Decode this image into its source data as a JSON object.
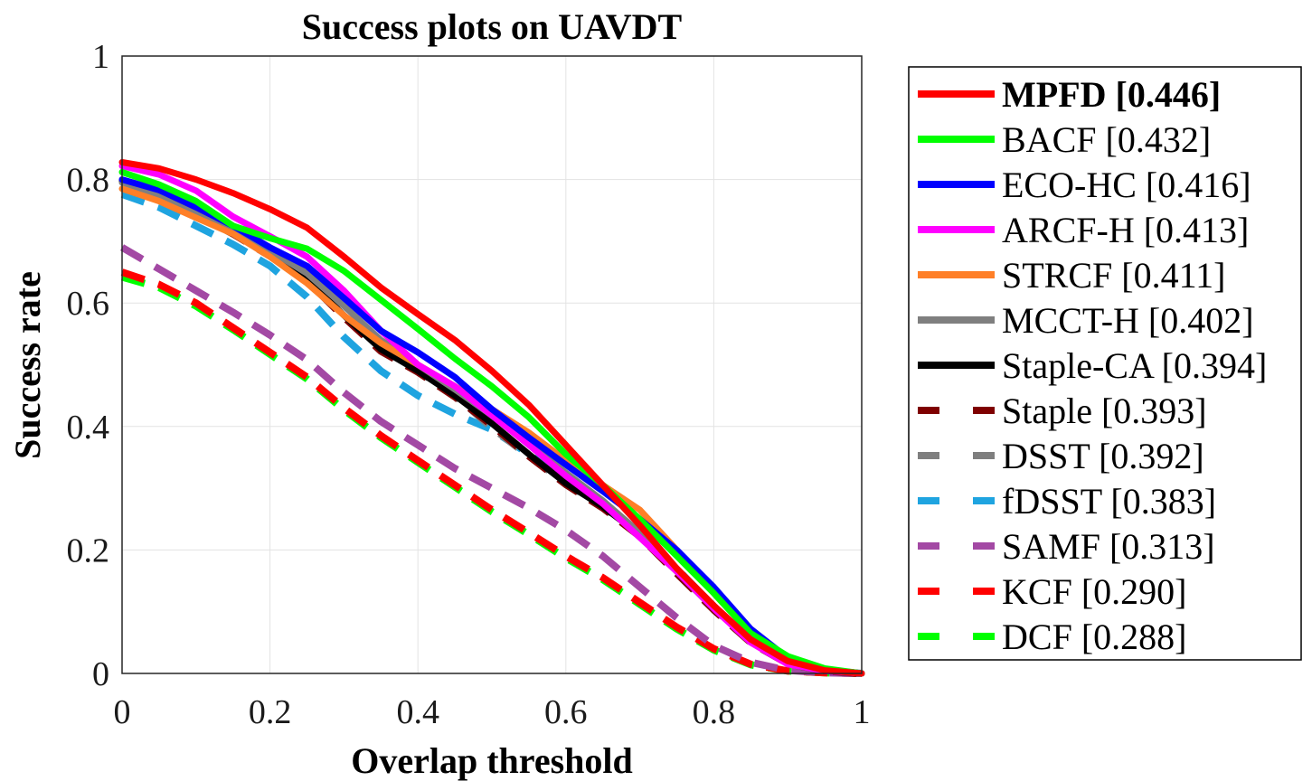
{
  "chart_data": {
    "type": "line",
    "title": "Success plots on UAVDT",
    "xlabel": "Overlap threshold",
    "ylabel": "Success rate",
    "xlim": [
      0,
      1
    ],
    "ylim": [
      0,
      1
    ],
    "xticks": [
      "0",
      "0.2",
      "0.4",
      "0.6",
      "0.8",
      "1"
    ],
    "yticks": [
      "0",
      "0.2",
      "0.4",
      "0.6",
      "0.8",
      "1"
    ],
    "grid": true,
    "legend_position": "outside-right",
    "series": [
      {
        "name": "MPFD",
        "label": "MPFD [0.446]",
        "score": 0.446,
        "color": "#ff0000",
        "dash": false,
        "bold": true,
        "x": [
          0,
          0.05,
          0.1,
          0.15,
          0.2,
          0.25,
          0.3,
          0.35,
          0.4,
          0.45,
          0.5,
          0.55,
          0.6,
          0.65,
          0.7,
          0.75,
          0.8,
          0.85,
          0.9,
          0.95,
          1
        ],
        "y": [
          0.828,
          0.818,
          0.8,
          0.778,
          0.752,
          0.722,
          0.675,
          0.625,
          0.582,
          0.54,
          0.49,
          0.435,
          0.37,
          0.305,
          0.24,
          0.17,
          0.11,
          0.055,
          0.02,
          0.005,
          0
        ]
      },
      {
        "name": "BACF",
        "label": "BACF [0.432]",
        "score": 0.432,
        "color": "#00ff00",
        "dash": false,
        "bold": false,
        "x": [
          0,
          0.05,
          0.1,
          0.15,
          0.2,
          0.25,
          0.3,
          0.35,
          0.4,
          0.45,
          0.5,
          0.55,
          0.6,
          0.65,
          0.7,
          0.75,
          0.8,
          0.85,
          0.9,
          0.95,
          1
        ],
        "y": [
          0.812,
          0.792,
          0.765,
          0.725,
          0.705,
          0.688,
          0.652,
          0.605,
          0.558,
          0.51,
          0.465,
          0.415,
          0.355,
          0.305,
          0.25,
          0.19,
          0.13,
          0.065,
          0.028,
          0.008,
          0
        ]
      },
      {
        "name": "ECO-HC",
        "label": "ECO-HC [0.416]",
        "score": 0.416,
        "color": "#0000ff",
        "dash": false,
        "bold": false,
        "x": [
          0,
          0.05,
          0.1,
          0.15,
          0.2,
          0.25,
          0.3,
          0.35,
          0.4,
          0.45,
          0.5,
          0.55,
          0.6,
          0.65,
          0.7,
          0.75,
          0.8,
          0.85,
          0.9,
          0.95,
          1
        ],
        "y": [
          0.8,
          0.783,
          0.755,
          0.725,
          0.69,
          0.66,
          0.608,
          0.555,
          0.52,
          0.48,
          0.428,
          0.382,
          0.338,
          0.295,
          0.25,
          0.2,
          0.14,
          0.072,
          0.025,
          0.007,
          0
        ]
      },
      {
        "name": "ARCF-H",
        "label": "ARCF-H [0.413]",
        "score": 0.413,
        "color": "#ff00ff",
        "dash": false,
        "bold": false,
        "x": [
          0,
          0.05,
          0.1,
          0.15,
          0.2,
          0.25,
          0.3,
          0.35,
          0.4,
          0.45,
          0.5,
          0.55,
          0.6,
          0.65,
          0.7,
          0.75,
          0.8,
          0.85,
          0.9,
          0.95,
          1
        ],
        "y": [
          0.822,
          0.808,
          0.782,
          0.74,
          0.708,
          0.675,
          0.62,
          0.555,
          0.5,
          0.465,
          0.418,
          0.37,
          0.32,
          0.275,
          0.22,
          0.165,
          0.105,
          0.05,
          0.015,
          0.004,
          0
        ]
      },
      {
        "name": "STRCF",
        "label": "STRCF [0.411]",
        "score": 0.411,
        "color": "#ff7f27",
        "dash": false,
        "bold": false,
        "x": [
          0,
          0.05,
          0.1,
          0.15,
          0.2,
          0.25,
          0.3,
          0.35,
          0.4,
          0.45,
          0.5,
          0.55,
          0.6,
          0.65,
          0.7,
          0.75,
          0.8,
          0.85,
          0.9,
          0.95,
          1
        ],
        "y": [
          0.785,
          0.765,
          0.738,
          0.712,
          0.675,
          0.632,
          0.58,
          0.535,
          0.5,
          0.465,
          0.428,
          0.39,
          0.345,
          0.305,
          0.265,
          0.2,
          0.13,
          0.065,
          0.022,
          0.006,
          0
        ]
      },
      {
        "name": "MCCT-H",
        "label": "MCCT-H [0.402]",
        "score": 0.402,
        "color": "#7f7f7f",
        "dash": false,
        "bold": false,
        "x": [
          0,
          0.05,
          0.1,
          0.15,
          0.2,
          0.25,
          0.3,
          0.35,
          0.4,
          0.45,
          0.5,
          0.55,
          0.6,
          0.65,
          0.7,
          0.75,
          0.8,
          0.85,
          0.9,
          0.95,
          1
        ],
        "y": [
          0.795,
          0.772,
          0.745,
          0.718,
          0.685,
          0.648,
          0.595,
          0.54,
          0.5,
          0.46,
          0.418,
          0.372,
          0.325,
          0.28,
          0.228,
          0.17,
          0.11,
          0.055,
          0.018,
          0.005,
          0
        ]
      },
      {
        "name": "Staple-CA",
        "label": "Staple-CA [0.394]",
        "score": 0.394,
        "color": "#000000",
        "dash": false,
        "bold": false,
        "x": [
          0,
          0.05,
          0.1,
          0.15,
          0.2,
          0.25,
          0.3,
          0.35,
          0.4,
          0.45,
          0.5,
          0.55,
          0.6,
          0.65,
          0.7,
          0.75,
          0.8,
          0.85,
          0.9,
          0.95,
          1
        ],
        "y": [
          0.798,
          0.778,
          0.748,
          0.712,
          0.678,
          0.638,
          0.58,
          0.525,
          0.49,
          0.45,
          0.405,
          0.355,
          0.308,
          0.27,
          0.225,
          0.165,
          0.105,
          0.052,
          0.017,
          0.004,
          0
        ]
      },
      {
        "name": "Staple",
        "label": "Staple [0.393]",
        "score": 0.393,
        "color": "#7f0000",
        "dash": true,
        "bold": false,
        "x": [
          0,
          0.05,
          0.1,
          0.15,
          0.2,
          0.25,
          0.3,
          0.35,
          0.4,
          0.45,
          0.5,
          0.55,
          0.6,
          0.65,
          0.7,
          0.75,
          0.8,
          0.85,
          0.9,
          0.95,
          1
        ],
        "y": [
          0.795,
          0.775,
          0.745,
          0.712,
          0.676,
          0.636,
          0.577,
          0.522,
          0.488,
          0.448,
          0.402,
          0.352,
          0.306,
          0.268,
          0.222,
          0.162,
          0.103,
          0.05,
          0.016,
          0.004,
          0
        ]
      },
      {
        "name": "DSST",
        "label": "DSST [0.392]",
        "score": 0.392,
        "color": "#7f7f7f",
        "dash": true,
        "bold": false,
        "x": [
          0,
          0.05,
          0.1,
          0.15,
          0.2,
          0.25,
          0.3,
          0.35,
          0.4,
          0.45,
          0.5,
          0.55,
          0.6,
          0.65,
          0.7,
          0.75,
          0.8,
          0.85,
          0.9,
          0.95,
          1
        ],
        "y": [
          0.79,
          0.77,
          0.742,
          0.712,
          0.678,
          0.64,
          0.582,
          0.528,
          0.49,
          0.45,
          0.398,
          0.352,
          0.308,
          0.27,
          0.225,
          0.165,
          0.105,
          0.05,
          0.016,
          0.004,
          0
        ]
      },
      {
        "name": "fDSST",
        "label": "fDSST [0.383]",
        "score": 0.383,
        "color": "#1fa4e0",
        "dash": true,
        "bold": false,
        "x": [
          0,
          0.05,
          0.1,
          0.15,
          0.2,
          0.25,
          0.3,
          0.35,
          0.4,
          0.45,
          0.5,
          0.55,
          0.6,
          0.65,
          0.7,
          0.75,
          0.8,
          0.85,
          0.9,
          0.95,
          1
        ],
        "y": [
          0.776,
          0.755,
          0.725,
          0.695,
          0.66,
          0.61,
          0.545,
          0.49,
          0.45,
          0.42,
          0.395,
          0.355,
          0.31,
          0.272,
          0.228,
          0.17,
          0.108,
          0.052,
          0.016,
          0.004,
          0
        ]
      },
      {
        "name": "SAMF",
        "label": "SAMF [0.313]",
        "score": 0.313,
        "color": "#a349a4",
        "dash": true,
        "bold": false,
        "x": [
          0,
          0.05,
          0.1,
          0.15,
          0.2,
          0.25,
          0.3,
          0.35,
          0.4,
          0.45,
          0.5,
          0.55,
          0.6,
          0.65,
          0.7,
          0.75,
          0.8,
          0.85,
          0.9,
          0.95,
          1
        ],
        "y": [
          0.69,
          0.655,
          0.62,
          0.585,
          0.548,
          0.508,
          0.455,
          0.408,
          0.37,
          0.332,
          0.3,
          0.268,
          0.232,
          0.19,
          0.14,
          0.09,
          0.045,
          0.018,
          0.005,
          0.001,
          0
        ]
      },
      {
        "name": "KCF",
        "label": "KCF [0.290]",
        "score": 0.29,
        "color": "#ff0000",
        "dash": true,
        "bold": false,
        "x": [
          0,
          0.05,
          0.1,
          0.15,
          0.2,
          0.25,
          0.3,
          0.35,
          0.4,
          0.45,
          0.5,
          0.55,
          0.6,
          0.65,
          0.7,
          0.75,
          0.8,
          0.85,
          0.9,
          0.95,
          1
        ],
        "y": [
          0.65,
          0.63,
          0.6,
          0.56,
          0.52,
          0.48,
          0.43,
          0.385,
          0.345,
          0.305,
          0.265,
          0.228,
          0.19,
          0.155,
          0.115,
          0.075,
          0.04,
          0.015,
          0.004,
          0.001,
          0
        ]
      },
      {
        "name": "DCF",
        "label": "DCF [0.288]",
        "score": 0.288,
        "color": "#00ff00",
        "dash": true,
        "bold": false,
        "x": [
          0,
          0.05,
          0.1,
          0.15,
          0.2,
          0.25,
          0.3,
          0.35,
          0.4,
          0.45,
          0.5,
          0.55,
          0.6,
          0.65,
          0.7,
          0.75,
          0.8,
          0.85,
          0.9,
          0.95,
          1
        ],
        "y": [
          0.642,
          0.625,
          0.595,
          0.557,
          0.517,
          0.477,
          0.427,
          0.382,
          0.342,
          0.302,
          0.262,
          0.225,
          0.187,
          0.152,
          0.112,
          0.072,
          0.038,
          0.014,
          0.004,
          0.001,
          0
        ]
      }
    ]
  }
}
